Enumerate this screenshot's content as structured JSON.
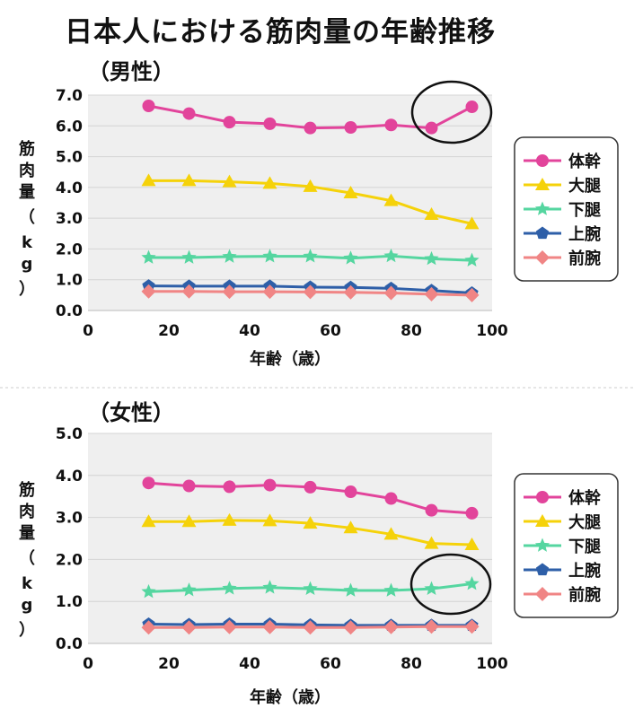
{
  "title": "日本人における筋肉量の年齢推移",
  "colors": {
    "体幹": "#e2449b",
    "大腿": "#f5d20a",
    "下腿": "#55d6a0",
    "上腕": "#2e5fa8",
    "前腕": "#f08585"
  },
  "chart_data": [
    {
      "type": "line",
      "title": "（男性）",
      "xlabel": "年齢（歳）",
      "ylabel": "筋肉量（kg）",
      "xlim": [
        0,
        100
      ],
      "ylim": [
        0,
        7
      ],
      "yticks": [
        "0.0",
        "1.0",
        "2.0",
        "3.0",
        "4.0",
        "5.0",
        "6.0",
        "7.0"
      ],
      "xticks": [
        "0",
        "20",
        "40",
        "60",
        "80",
        "100"
      ],
      "grid": true,
      "legend": "right",
      "x": [
        15,
        25,
        35,
        45,
        55,
        65,
        75,
        85,
        95
      ],
      "series": [
        {
          "name": "体幹",
          "marker": "circle",
          "values": [
            6.65,
            6.4,
            6.12,
            6.07,
            5.93,
            5.95,
            6.03,
            5.93,
            6.62
          ]
        },
        {
          "name": "大腿",
          "marker": "triangle",
          "values": [
            4.22,
            4.22,
            4.18,
            4.13,
            4.03,
            3.82,
            3.57,
            3.12,
            2.82
          ]
        },
        {
          "name": "下腿",
          "marker": "star",
          "values": [
            1.72,
            1.72,
            1.75,
            1.76,
            1.76,
            1.7,
            1.77,
            1.68,
            1.63
          ]
        },
        {
          "name": "上腕",
          "marker": "pentagon",
          "values": [
            0.8,
            0.79,
            0.79,
            0.79,
            0.76,
            0.75,
            0.72,
            0.65,
            0.57
          ]
        },
        {
          "name": "前腕",
          "marker": "diamond",
          "values": [
            0.62,
            0.62,
            0.61,
            0.61,
            0.6,
            0.59,
            0.57,
            0.53,
            0.5
          ]
        }
      ],
      "annotation": "ellipse around 体幹 at 85–95"
    },
    {
      "type": "line",
      "title": "（女性）",
      "xlabel": "年齢（歳）",
      "ylabel": "筋肉量（kg）",
      "xlim": [
        0,
        100
      ],
      "ylim": [
        0,
        5
      ],
      "yticks": [
        "0.0",
        "1.0",
        "2.0",
        "3.0",
        "4.0",
        "5.0"
      ],
      "xticks": [
        "0",
        "20",
        "40",
        "60",
        "80",
        "100"
      ],
      "grid": true,
      "legend": "right",
      "x": [
        15,
        25,
        35,
        45,
        55,
        65,
        75,
        85,
        95
      ],
      "series": [
        {
          "name": "体幹",
          "marker": "circle",
          "values": [
            3.82,
            3.75,
            3.73,
            3.77,
            3.72,
            3.61,
            3.45,
            3.17,
            3.1
          ]
        },
        {
          "name": "大腿",
          "marker": "triangle",
          "values": [
            2.9,
            2.9,
            2.93,
            2.92,
            2.86,
            2.75,
            2.6,
            2.38,
            2.35
          ]
        },
        {
          "name": "下腿",
          "marker": "star",
          "values": [
            1.23,
            1.27,
            1.31,
            1.33,
            1.3,
            1.26,
            1.26,
            1.3,
            1.42
          ]
        },
        {
          "name": "上腕",
          "marker": "pentagon",
          "values": [
            0.46,
            0.45,
            0.46,
            0.46,
            0.44,
            0.43,
            0.43,
            0.43,
            0.43
          ]
        },
        {
          "name": "前腕",
          "marker": "diamond",
          "values": [
            0.38,
            0.38,
            0.39,
            0.39,
            0.38,
            0.38,
            0.39,
            0.4,
            0.4
          ]
        }
      ],
      "annotation": "ellipse around 下腿 at 85–95"
    }
  ]
}
